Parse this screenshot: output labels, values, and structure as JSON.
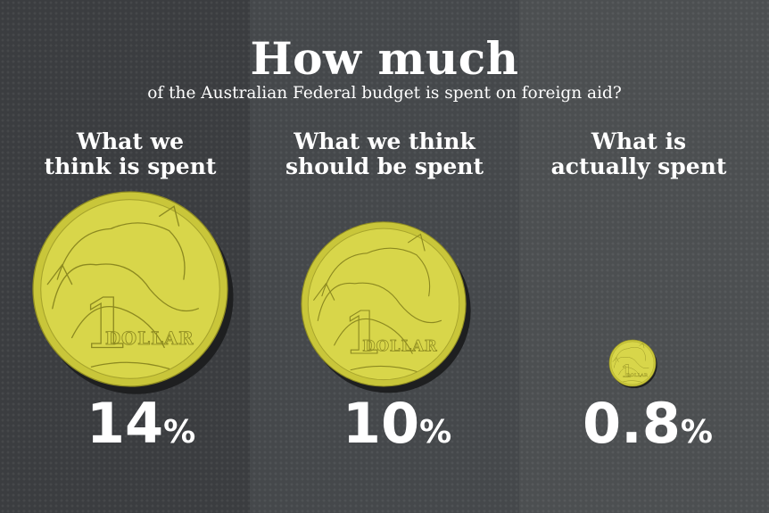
{
  "title": "How much",
  "subtitle": "of the Australian Federal budget is spent on foreign aid?",
  "colors": {
    "coin_fill": "#d8d64a",
    "coin_rim": "#c9c63a",
    "coin_shadow": "#1e1f20",
    "panel_dark": "#3b3d40",
    "panel_mid": "#45484b",
    "panel_light": "#4c4f51"
  },
  "coin_text": "DOLLAR",
  "chart_data": {
    "type": "bar",
    "categories": [
      [
        "What we",
        "think is spent"
      ],
      [
        "What we think",
        "should be spent"
      ],
      [
        "What is",
        "actually spent"
      ]
    ],
    "values": [
      14,
      10,
      0.8
    ],
    "value_labels": [
      "14",
      "10",
      "0.8"
    ],
    "unit": "%",
    "title": "How much",
    "subtitle": "of the Australian Federal budget is spent on foreign aid?"
  }
}
